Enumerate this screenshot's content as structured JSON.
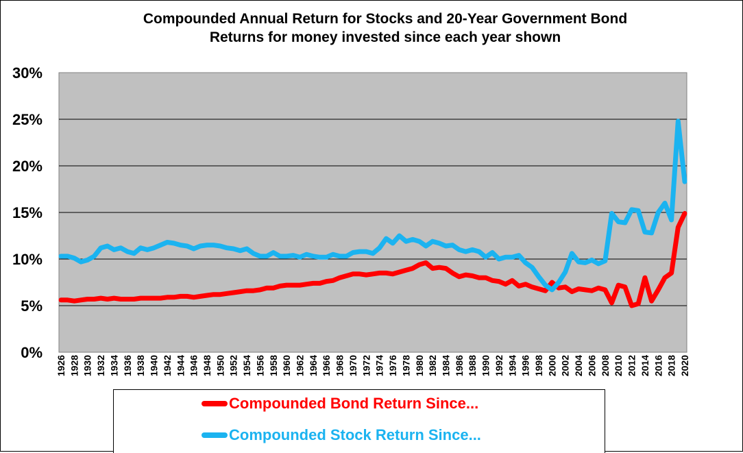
{
  "chart_data": {
    "type": "line",
    "title": [
      "Compounded Annual Return for Stocks and 20-Year Government Bond",
      "Returns for money invested since each year shown"
    ],
    "xlabel": "",
    "ylabel": "",
    "x": [
      1926,
      1927,
      1928,
      1929,
      1930,
      1931,
      1932,
      1933,
      1934,
      1935,
      1936,
      1937,
      1938,
      1939,
      1940,
      1941,
      1942,
      1943,
      1944,
      1945,
      1946,
      1947,
      1948,
      1949,
      1950,
      1951,
      1952,
      1953,
      1954,
      1955,
      1956,
      1957,
      1958,
      1959,
      1960,
      1961,
      1962,
      1963,
      1964,
      1965,
      1966,
      1967,
      1968,
      1969,
      1970,
      1971,
      1972,
      1973,
      1974,
      1975,
      1976,
      1977,
      1978,
      1979,
      1980,
      1981,
      1982,
      1983,
      1984,
      1985,
      1986,
      1987,
      1988,
      1989,
      1990,
      1991,
      1992,
      1993,
      1994,
      1995,
      1996,
      1997,
      1998,
      1999,
      2000,
      2001,
      2002,
      2003,
      2004,
      2005,
      2006,
      2007,
      2008,
      2009,
      2010,
      2011,
      2012,
      2013,
      2014,
      2015,
      2016,
      2017,
      2018,
      2019,
      2020
    ],
    "x_tick_labels": [
      "1926",
      "1928",
      "1930",
      "1932",
      "1934",
      "1936",
      "1938",
      "1940",
      "1942",
      "1944",
      "1946",
      "1948",
      "1950",
      "1952",
      "1954",
      "1956",
      "1958",
      "1960",
      "1962",
      "1964",
      "1966",
      "1968",
      "1970",
      "1972",
      "1974",
      "1976",
      "1978",
      "1980",
      "1982",
      "1984",
      "1986",
      "1988",
      "1990",
      "1992",
      "1994",
      "1996",
      "1998",
      "2000",
      "2002",
      "2004",
      "2006",
      "2008",
      "2010",
      "2012",
      "2014",
      "2016",
      "2018",
      "2020"
    ],
    "y_tick_labels": [
      "0%",
      "5%",
      "10%",
      "15%",
      "20%",
      "25%",
      "30%"
    ],
    "ylim": [
      0,
      30
    ],
    "grid": "horizontal",
    "series": [
      {
        "name": "Compounded Bond Return Since...",
        "color": "#FF0000",
        "values": [
          5.6,
          5.6,
          5.5,
          5.6,
          5.7,
          5.7,
          5.8,
          5.7,
          5.8,
          5.7,
          5.7,
          5.7,
          5.8,
          5.8,
          5.8,
          5.8,
          5.9,
          5.9,
          6.0,
          6.0,
          5.9,
          6.0,
          6.1,
          6.2,
          6.2,
          6.3,
          6.4,
          6.5,
          6.6,
          6.6,
          6.7,
          6.9,
          6.9,
          7.1,
          7.2,
          7.2,
          7.2,
          7.3,
          7.4,
          7.4,
          7.6,
          7.7,
          8.0,
          8.2,
          8.4,
          8.4,
          8.3,
          8.4,
          8.5,
          8.5,
          8.4,
          8.6,
          8.8,
          9.0,
          9.4,
          9.6,
          9.0,
          9.1,
          9.0,
          8.5,
          8.1,
          8.3,
          8.2,
          8.0,
          8.0,
          7.7,
          7.6,
          7.3,
          7.7,
          7.1,
          7.3,
          7.0,
          6.8,
          6.6,
          7.5,
          6.9,
          7.0,
          6.5,
          6.8,
          6.7,
          6.6,
          6.9,
          6.7,
          5.3,
          7.2,
          7.0,
          5.0,
          5.2,
          8.0,
          5.5,
          6.7,
          8.0,
          8.5,
          13.4,
          14.9
        ]
      },
      {
        "name": "Compounded Stock Return Since...",
        "color": "#1BB3F0",
        "values": [
          10.3,
          10.3,
          10.1,
          9.7,
          9.9,
          10.3,
          11.2,
          11.4,
          11.0,
          11.2,
          10.8,
          10.6,
          11.2,
          11.0,
          11.2,
          11.5,
          11.8,
          11.7,
          11.5,
          11.4,
          11.1,
          11.4,
          11.5,
          11.5,
          11.4,
          11.2,
          11.1,
          10.9,
          11.1,
          10.6,
          10.3,
          10.3,
          10.7,
          10.3,
          10.3,
          10.4,
          10.2,
          10.5,
          10.3,
          10.2,
          10.2,
          10.5,
          10.3,
          10.3,
          10.7,
          10.8,
          10.8,
          10.6,
          11.2,
          12.2,
          11.7,
          12.5,
          11.9,
          12.1,
          11.9,
          11.4,
          11.9,
          11.7,
          11.4,
          11.5,
          11.0,
          10.8,
          11.0,
          10.8,
          10.2,
          10.7,
          10.0,
          10.2,
          10.2,
          10.4,
          9.6,
          9.1,
          8.1,
          7.2,
          6.7,
          7.5,
          8.6,
          10.6,
          9.7,
          9.6,
          9.9,
          9.5,
          9.8,
          14.9,
          14.0,
          13.9,
          15.3,
          15.2,
          12.9,
          12.8,
          15.0,
          16.0,
          14.2,
          24.8,
          18.3
        ]
      }
    ]
  }
}
